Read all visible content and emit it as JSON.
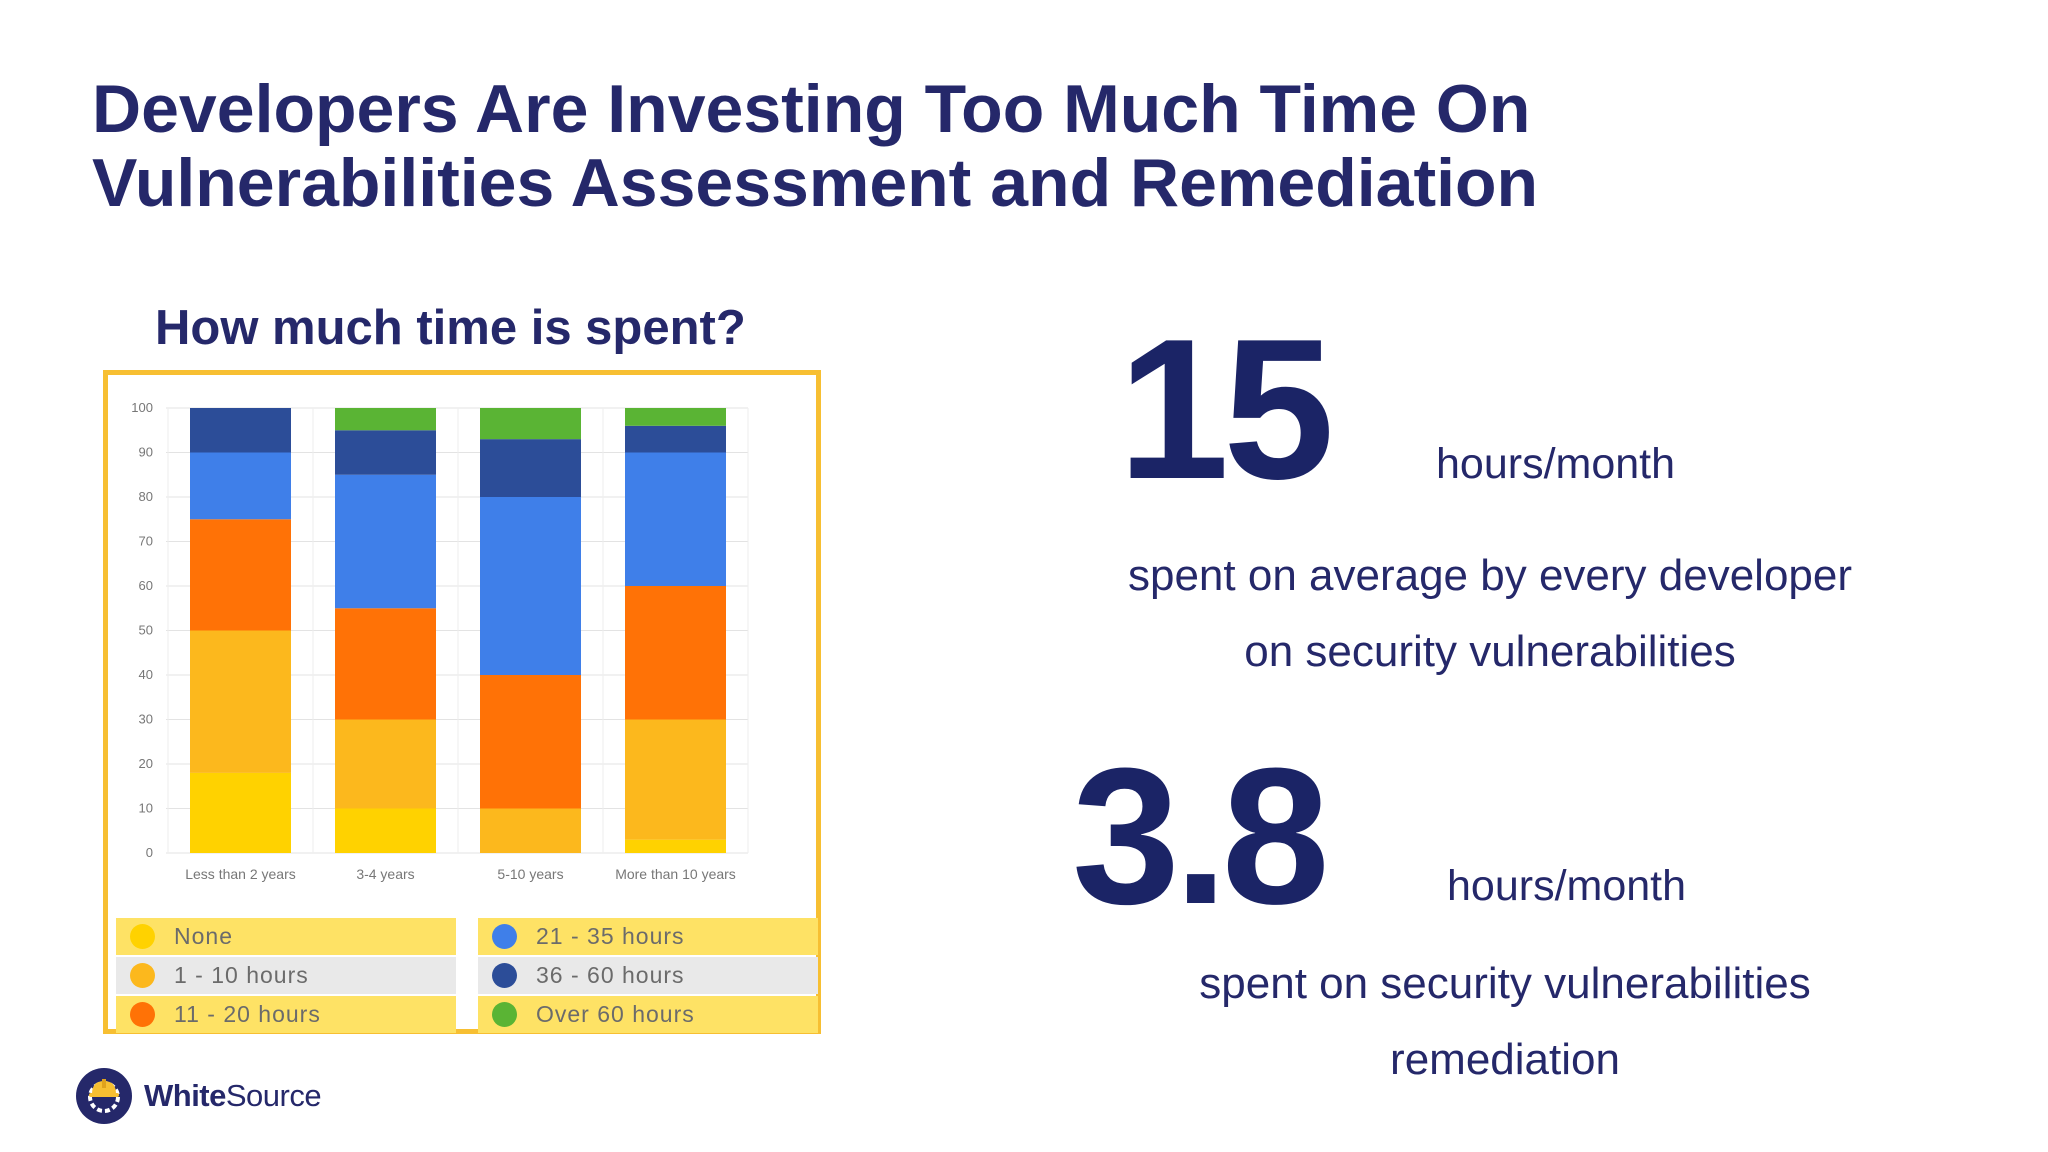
{
  "slide": {
    "title_line1": "Developers Are Investing Too Much Time On",
    "title_line2": "Vulnerabilities Assessment and Remediation"
  },
  "chart_heading": "How much time is spent?",
  "stats": [
    {
      "value": "15",
      "unit": "hours/month",
      "desc_line1": "spent on average by every developer",
      "desc_line2": "on security vulnerabilities"
    },
    {
      "value": "3.8",
      "unit": "hours/month",
      "desc_line1": "spent on security vulnerabilities",
      "desc_line2": "remediation"
    }
  ],
  "brand": {
    "name_bold": "White",
    "name_regular": "Source"
  },
  "chart_data": {
    "type": "bar",
    "stacked": true,
    "categories": [
      "Less than 2 years",
      "3-4 years",
      "5-10 years",
      "More than 10 years"
    ],
    "ylim": [
      0,
      100
    ],
    "yticks": [
      0,
      10,
      20,
      30,
      40,
      50,
      60,
      70,
      80,
      90,
      100
    ],
    "grid": true,
    "legend_position": "bottom",
    "series": [
      {
        "name": "None",
        "color": "#ffd200",
        "values": [
          18,
          10,
          0,
          3
        ]
      },
      {
        "name": "1 - 10 hours",
        "color": "#fcb81d",
        "values": [
          32,
          20,
          10,
          27
        ]
      },
      {
        "name": "11 - 20 hours",
        "color": "#ff7206",
        "values": [
          25,
          25,
          30,
          30
        ]
      },
      {
        "name": "21 - 35 hours",
        "color": "#3f7fe9",
        "values": [
          15,
          30,
          40,
          30
        ]
      },
      {
        "name": "36 - 60 hours",
        "color": "#2c4d98",
        "values": [
          10,
          10,
          13,
          6
        ]
      },
      {
        "name": "Over 60 hours",
        "color": "#5ab434",
        "values": [
          0,
          5,
          7,
          4
        ]
      }
    ]
  }
}
